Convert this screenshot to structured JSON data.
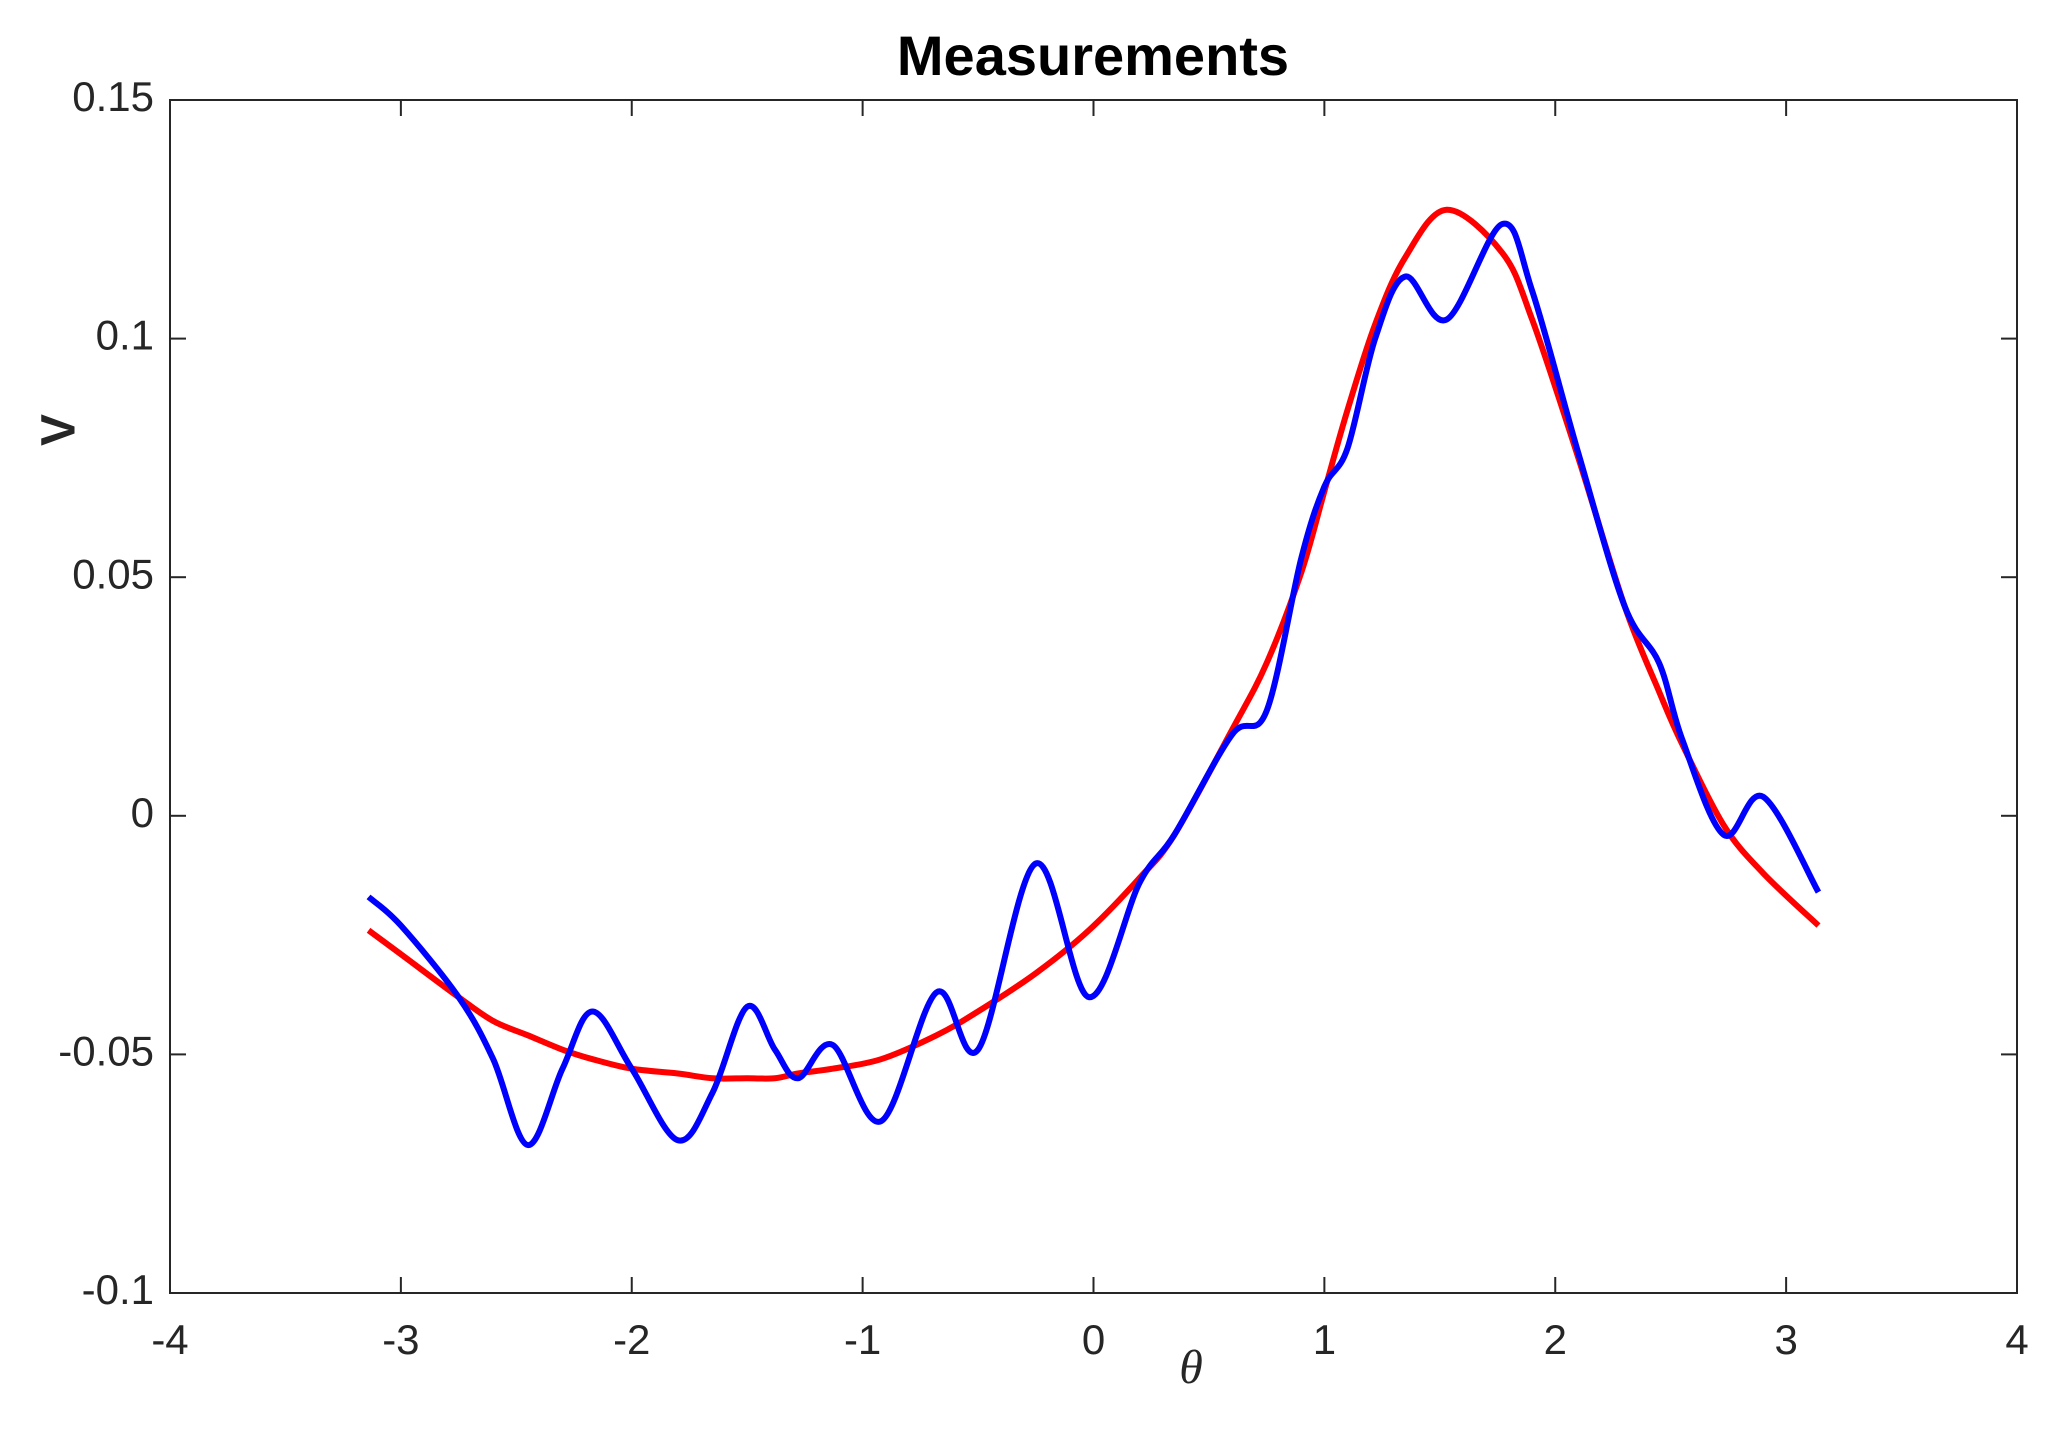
{
  "chart_data": {
    "type": "line",
    "title": "Measurements",
    "x_label": "θ",
    "y_label": "V",
    "x": [
      -3.14,
      -3.0,
      -2.75,
      -2.6,
      -2.45,
      -2.3,
      -2.17,
      -2.0,
      -1.8,
      -1.65,
      -1.5,
      -1.38,
      -1.28,
      -1.13,
      -0.92,
      -0.68,
      -0.5,
      -0.25,
      -0.02,
      0.2,
      0.35,
      0.6,
      0.75,
      0.9,
      1.0,
      1.1,
      1.22,
      1.35,
      1.53,
      1.77,
      1.9,
      2.1,
      2.3,
      2.45,
      2.55,
      2.73,
      2.9,
      3.14
    ],
    "series": [
      {
        "color": "#ff0000",
        "values": [
          -0.024,
          -0.029,
          -0.038,
          -0.043,
          -0.046,
          -0.049,
          -0.051,
          -0.053,
          -0.054,
          -0.055,
          -0.055,
          -0.055,
          -0.054,
          -0.053,
          -0.051,
          -0.046,
          -0.041,
          -0.033,
          -0.024,
          -0.013,
          -0.004,
          0.018,
          0.032,
          0.051,
          0.068,
          0.085,
          0.103,
          0.117,
          0.127,
          0.118,
          0.104,
          0.075,
          0.044,
          0.026,
          0.015,
          -0.002,
          -0.012,
          -0.023
        ]
      },
      {
        "color": "#0000ff",
        "values": [
          -0.017,
          -0.023,
          -0.038,
          -0.051,
          -0.069,
          -0.053,
          -0.041,
          -0.053,
          -0.068,
          -0.058,
          -0.04,
          -0.049,
          -0.055,
          -0.048,
          -0.064,
          -0.037,
          -0.049,
          -0.01,
          -0.038,
          -0.014,
          -0.004,
          0.017,
          0.022,
          0.054,
          0.069,
          0.077,
          0.1,
          0.113,
          0.104,
          0.124,
          0.11,
          0.076,
          0.044,
          0.032,
          0.016,
          -0.004,
          0.004,
          -0.016
        ]
      }
    ],
    "xlim": [
      -4,
      4
    ],
    "xticks": [
      -4,
      -3,
      -2,
      -1,
      0,
      1,
      2,
      3,
      4
    ],
    "ylim": [
      -0.1,
      0.15
    ],
    "yticks": [
      -0.1,
      -0.05,
      0,
      0.05,
      0.1,
      0.15
    ]
  }
}
